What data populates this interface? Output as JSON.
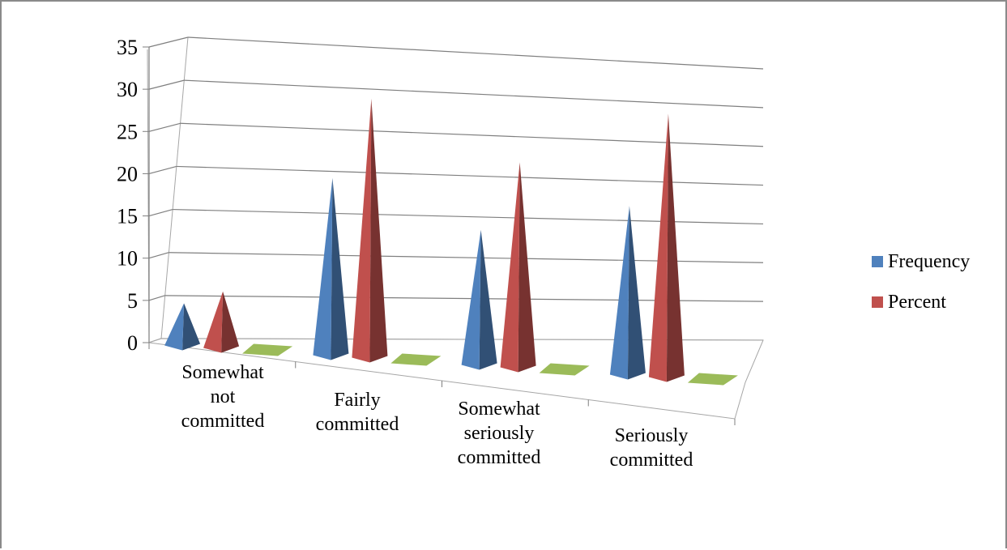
{
  "chart_data": {
    "type": "bar",
    "style": "3d-pyramid",
    "categories": [
      "Somewhat not committed",
      "Fairly committed",
      "Somewhat seriously committed",
      "Seriously committed"
    ],
    "category_lines": [
      [
        "Somewhat",
        "not",
        "committed"
      ],
      [
        "Fairly",
        "committed"
      ],
      [
        "Somewhat",
        "seriously",
        "committed"
      ],
      [
        "Seriously",
        "committed"
      ]
    ],
    "series": [
      {
        "name": "Frequency",
        "color": "#4f81bd",
        "values": [
          5,
          21,
          16,
          20
        ]
      },
      {
        "name": "Percent",
        "color": "#c0504d",
        "values": [
          6.7,
          30.7,
          24.3,
          31.2
        ]
      },
      {
        "color": "#9bbb59",
        "values": [
          0,
          0,
          0,
          0
        ]
      }
    ],
    "ylim": [
      0,
      35
    ],
    "yticks": [
      "0",
      "5",
      "10",
      "15",
      "20",
      "25",
      "30",
      "35"
    ],
    "grid": true,
    "legend_position": "right"
  }
}
